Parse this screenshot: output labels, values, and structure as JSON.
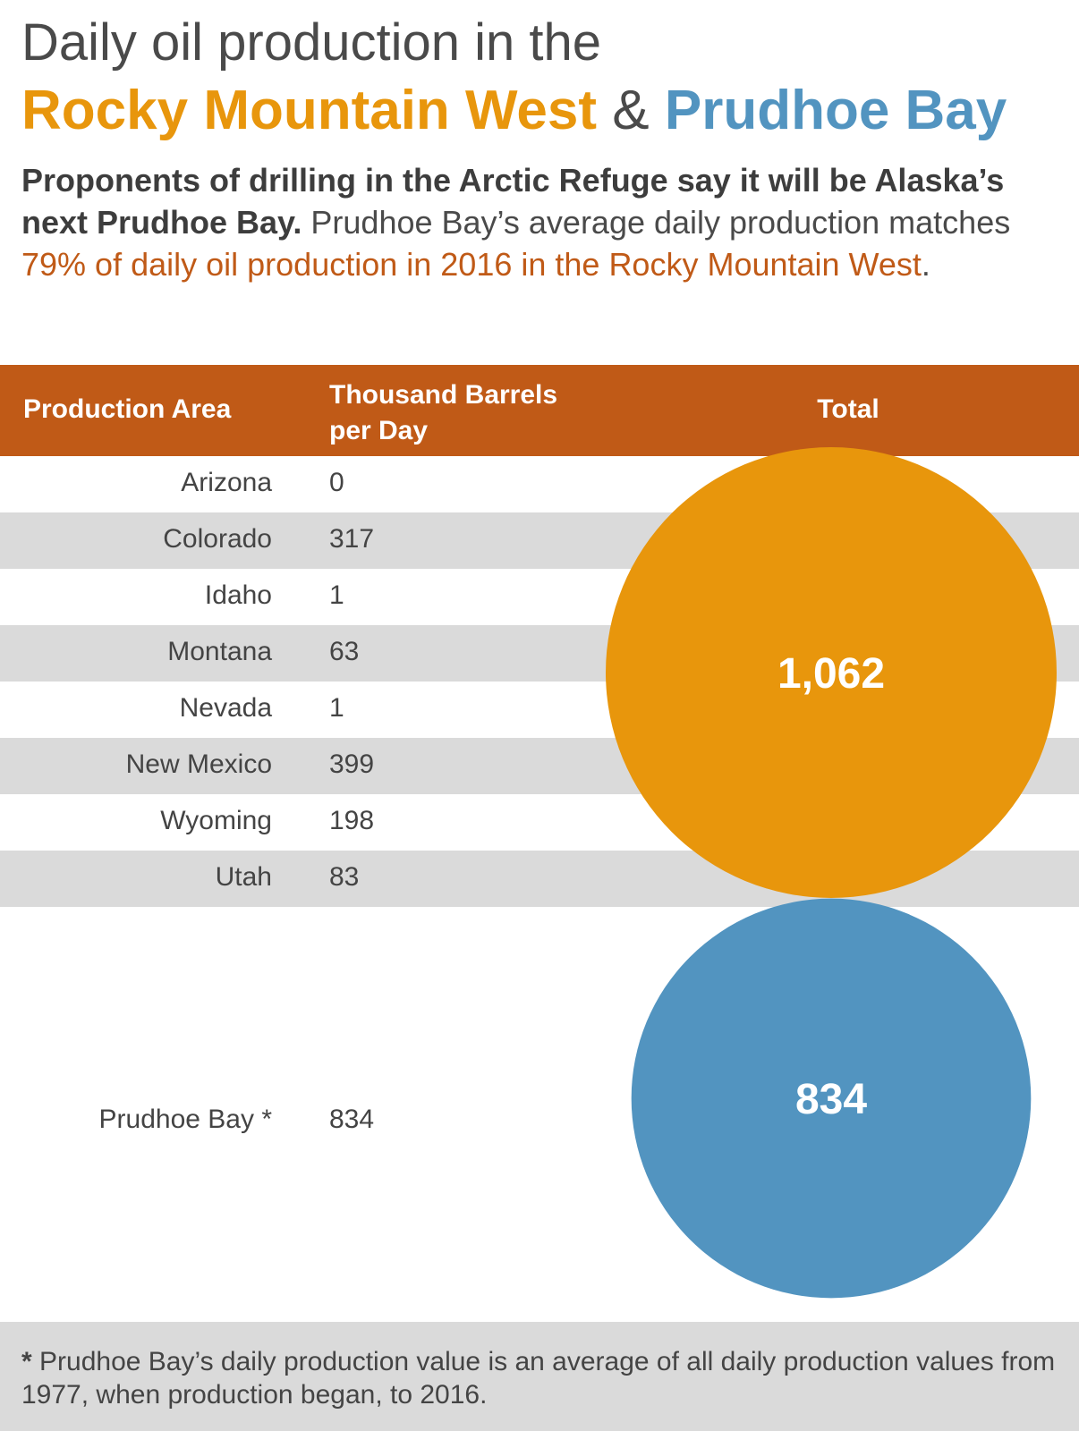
{
  "colors": {
    "header_bg": "#c05a17",
    "stripe": "#dadada",
    "orange": "#e8960c",
    "blue": "#5294c0",
    "highlight_text": "#c05a17",
    "footnote_bg": "#dadada"
  },
  "title": {
    "line1": "Daily oil production in the",
    "part_a": "Rocky Mountain West",
    "amp": " & ",
    "part_b": "Prudhoe Bay"
  },
  "intro": {
    "bold": "Proponents of drilling in the Arctic Refuge say it will be Alaska’s next Prudhoe Bay.",
    "normal": " Prudhoe Bay’s average daily production matches ",
    "highlight": "79% of daily oil production in 2016 in the Rocky Mountain West",
    "end": "."
  },
  "table_header": {
    "area": "Production Area",
    "value_line1": "Thousand Barrels",
    "value_line2": "per Day",
    "total": "Total"
  },
  "chart_data": {
    "type": "table",
    "columns": [
      "Production Area",
      "Thousand Barrels per Day",
      "Total"
    ],
    "rows": [
      {
        "area": "Arizona",
        "value": "0"
      },
      {
        "area": "Colorado",
        "value": "317"
      },
      {
        "area": "Idaho",
        "value": "1"
      },
      {
        "area": "Montana",
        "value": "63"
      },
      {
        "area": "Nevada",
        "value": "1"
      },
      {
        "area": "New Mexico",
        "value": "399"
      },
      {
        "area": "Wyoming",
        "value": "198"
      },
      {
        "area": "Utah",
        "value": "83"
      }
    ],
    "prudhoe": {
      "area": "Prudhoe Bay *",
      "value": "834"
    },
    "totals": [
      {
        "label": "1,062",
        "value": 1062,
        "color": "#e8960c"
      },
      {
        "label": "834",
        "value": 834,
        "color": "#5294c0"
      }
    ]
  },
  "footnote": {
    "star": "*",
    "text": " Prudhoe Bay’s daily production value is an average of all daily production values from 1977, when production began, to 2016."
  }
}
